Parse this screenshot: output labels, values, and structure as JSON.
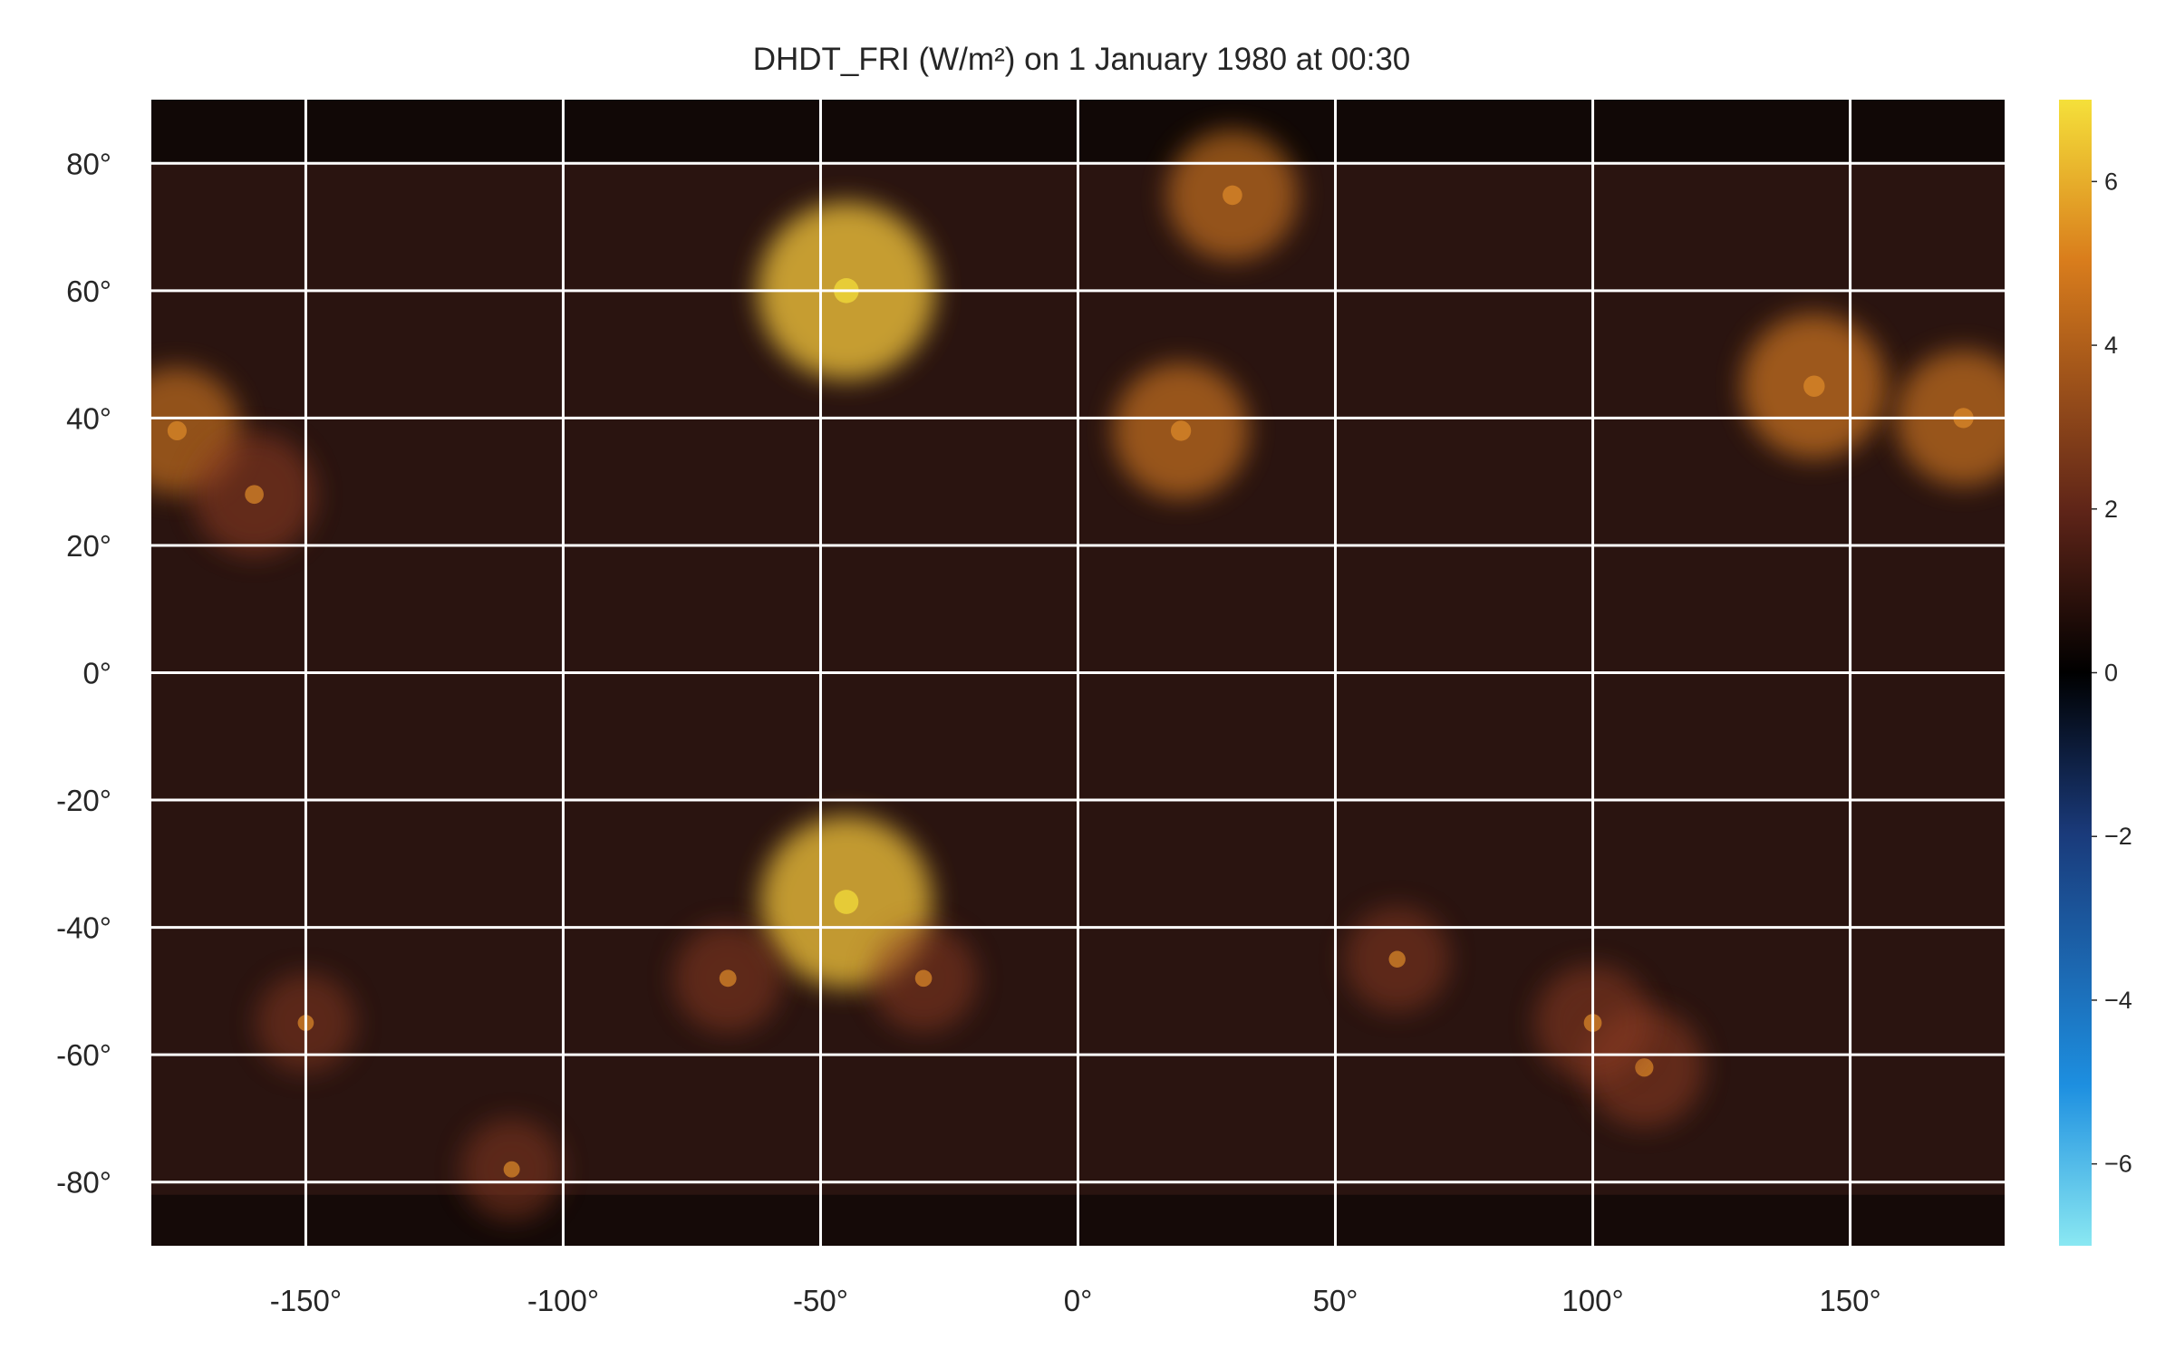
{
  "chart_data": {
    "type": "heatmap",
    "title": "DHDT_FRI (W/m²) on 1 January 1980 at 00:30",
    "xlabel": "",
    "ylabel": "",
    "xlim": [
      -180,
      180
    ],
    "ylim": [
      -90,
      90
    ],
    "grid": true,
    "x_ticks": [
      -150,
      -100,
      -50,
      0,
      50,
      100,
      150
    ],
    "x_tick_labels": [
      "-150°",
      "-100°",
      "-50°",
      "0°",
      "50°",
      "100°",
      "150°"
    ],
    "y_ticks": [
      80,
      60,
      40,
      20,
      0,
      -20,
      -40,
      -60,
      -80
    ],
    "y_tick_labels": [
      "80°",
      "60°",
      "40°",
      "20°",
      "0°",
      "-20°",
      "-40°",
      "-60°",
      "-80°"
    ],
    "colorbar": {
      "range": [
        -7,
        7
      ],
      "ticks": [
        6,
        4,
        2,
        0,
        -2,
        -4,
        -6
      ],
      "tick_labels": [
        "6",
        "4",
        "2",
        "0",
        "−2",
        "−4",
        "−6"
      ],
      "colors": {
        "max": "#f5e03a",
        "high": "#d97d1c",
        "mid_high": "#5e2418",
        "zero": "#000000",
        "mid_low": "#1a3a7a",
        "low": "#1d8fe0",
        "min": "#8ae8f2"
      }
    },
    "field_hotspots": [
      {
        "lon": -45,
        "lat": -36,
        "value": 6.5
      },
      {
        "lon": -45,
        "lat": 60,
        "value": 6.8
      },
      {
        "lon": 20,
        "lat": 38,
        "value": 4.5
      },
      {
        "lon": 143,
        "lat": 45,
        "value": 5.0
      },
      {
        "lon": 172,
        "lat": 40,
        "value": 4.5
      },
      {
        "lon": -175,
        "lat": 38,
        "value": 4.0
      },
      {
        "lon": -160,
        "lat": 28,
        "value": 3.8
      },
      {
        "lon": 30,
        "lat": 75,
        "value": 4.2
      },
      {
        "lon": 110,
        "lat": -62,
        "value": 3.6
      },
      {
        "lon": 100,
        "lat": -55,
        "value": 3.4
      },
      {
        "lon": -68,
        "lat": -48,
        "value": 3.0
      },
      {
        "lon": 62,
        "lat": -45,
        "value": 2.8
      },
      {
        "lon": -30,
        "lat": -48,
        "value": 2.9
      },
      {
        "lon": -150,
        "lat": -55,
        "value": 2.5
      },
      {
        "lon": -110,
        "lat": -78,
        "value": 2.6
      }
    ]
  }
}
